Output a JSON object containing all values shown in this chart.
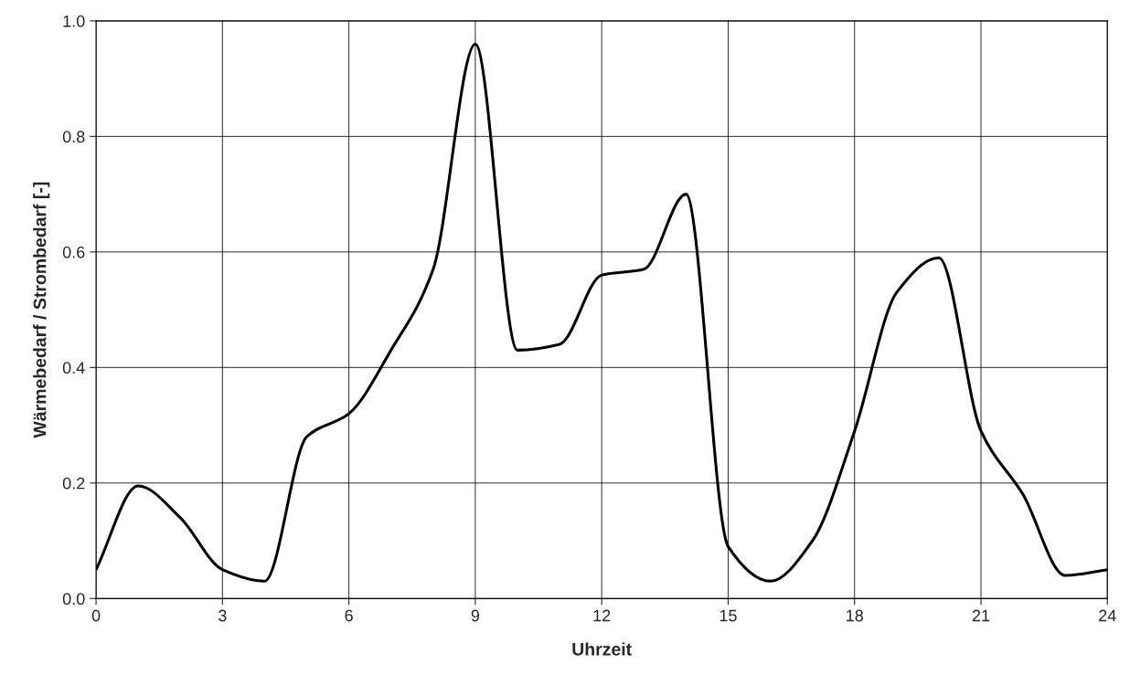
{
  "chart_data": {
    "type": "line",
    "xlabel": "Uhrzeit",
    "ylabel": "Wärmebedarf / Strombedarf [-]",
    "x": [
      0,
      1,
      2,
      3,
      4,
      5,
      6,
      7,
      8,
      9,
      10,
      11,
      12,
      13,
      14,
      15,
      16,
      17,
      18,
      19,
      20,
      21,
      22,
      23,
      24
    ],
    "series": [
      {
        "color": "#000000",
        "values": [
          0.05,
          0.195,
          0.14,
          0.05,
          0.03,
          0.28,
          0.32,
          0.43,
          0.57,
          0.96,
          0.43,
          0.44,
          0.56,
          0.57,
          0.7,
          0.09,
          0.03,
          0.1,
          0.29,
          0.53,
          0.59,
          0.29,
          0.18,
          0.04,
          0.05
        ]
      }
    ],
    "xlim": [
      0,
      24
    ],
    "xticks": [
      0,
      3,
      6,
      9,
      12,
      15,
      18,
      21,
      24
    ],
    "ylim": [
      0,
      1
    ],
    "yticks": [
      {
        "value": 0,
        "label": "0.0"
      },
      {
        "value": 0.2,
        "label": "0.2"
      },
      {
        "value": 0.4,
        "label": "0.4"
      },
      {
        "value": 0.6,
        "label": "0.6"
      },
      {
        "value": 0.8,
        "label": "0.8"
      },
      {
        "value": 1,
        "label": "1.0"
      }
    ],
    "grid": true,
    "legend": false,
    "marker": "none",
    "line_style": "solid"
  }
}
